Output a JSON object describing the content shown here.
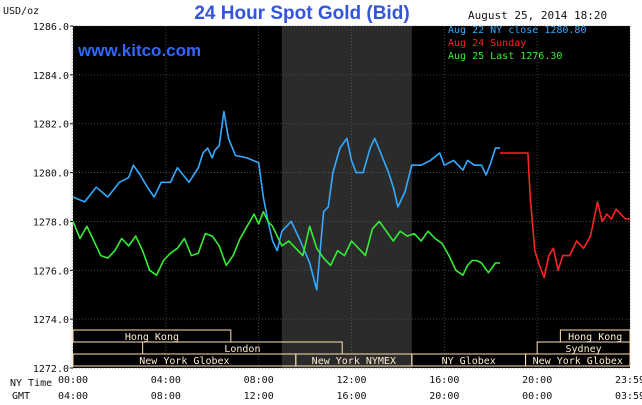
{
  "chart_data": {
    "type": "line",
    "title": "24 Hour Spot Gold (Bid)",
    "website": "www.kitco.com",
    "timestamp": "August 25, 2014 18:20",
    "ylabel": "USD/oz",
    "ylim": [
      1272.0,
      1286.0
    ],
    "y_ticks": [
      "1286.0",
      "1284.0",
      "1282.0",
      "1280.0",
      "1278.0",
      "1276.0",
      "1274.0",
      "1272.0"
    ],
    "x_axis_rows": [
      {
        "label": "NY Time",
        "ticks": [
          "00:00",
          "04:00",
          "08:00",
          "12:00",
          "16:00",
          "20:00",
          "23:59"
        ]
      },
      {
        "label": "GMT",
        "ticks": [
          "04:00",
          "08:00",
          "12:00",
          "16:00",
          "20:00",
          "00:00",
          "03:59"
        ]
      }
    ],
    "legend": [
      {
        "text": "Aug 22 NY close 1280.80",
        "color": "#33aaff"
      },
      {
        "text": "Aug 24 Sunday",
        "color": "#ff2222"
      },
      {
        "text": "Aug 25 Last 1276.30",
        "color": "#33ee33"
      }
    ],
    "sessions": [
      {
        "name": "Hong Kong",
        "row": 0,
        "start": 0.0,
        "end": 6.8
      },
      {
        "name": "Hong Kong",
        "row": 0,
        "start": 21.0,
        "end": 24.0
      },
      {
        "name": "London",
        "row": 1,
        "start": 3.0,
        "end": 11.6
      },
      {
        "name": "Sydney",
        "row": 1,
        "start": 20.0,
        "end": 24.0
      },
      {
        "name": "New York Globex",
        "row": 2,
        "start": 0.0,
        "end": 9.6
      },
      {
        "name": "New York NYMEX",
        "row": 2,
        "start": 9.6,
        "end": 14.6
      },
      {
        "name": "NY Globex",
        "row": 2,
        "start": 14.6,
        "end": 19.5
      },
      {
        "name": "New York Globex",
        "row": 2,
        "start": 19.5,
        "end": 24.0
      }
    ],
    "nymex_shade": [
      9.0,
      14.6
    ],
    "series": [
      {
        "name": "Aug 22 NY close 1280.80",
        "color": "#33aaff",
        "x": [
          0.0,
          0.5,
          1.0,
          1.5,
          2.0,
          2.4,
          2.6,
          2.9,
          3.2,
          3.5,
          3.8,
          4.2,
          4.5,
          5.0,
          5.4,
          5.6,
          5.8,
          6.0,
          6.1,
          6.3,
          6.5,
          6.7,
          7.0,
          7.5,
          8.0,
          8.2,
          8.4,
          8.6,
          8.8,
          9.0,
          9.4,
          9.8,
          10.2,
          10.5,
          10.8,
          11.0,
          11.2,
          11.5,
          11.8,
          12.0,
          12.2,
          12.5,
          12.8,
          13.0,
          13.3,
          13.6,
          13.8,
          14.0,
          14.3,
          14.6,
          15.0,
          15.4,
          15.8,
          16.0,
          16.4,
          16.8,
          17.0,
          17.3,
          17.6,
          17.8,
          18.0,
          18.2,
          18.4
        ],
        "y": [
          1279.0,
          1278.8,
          1279.4,
          1279.0,
          1279.6,
          1279.8,
          1280.3,
          1279.9,
          1279.4,
          1279.0,
          1279.6,
          1279.6,
          1280.2,
          1279.6,
          1280.2,
          1280.8,
          1281.0,
          1280.6,
          1280.9,
          1281.1,
          1282.5,
          1281.4,
          1280.7,
          1280.6,
          1280.4,
          1279.0,
          1278.0,
          1277.2,
          1276.8,
          1277.6,
          1278.0,
          1277.2,
          1276.3,
          1275.2,
          1278.4,
          1278.6,
          1280.0,
          1281.0,
          1281.4,
          1280.5,
          1280.0,
          1280.0,
          1281.0,
          1281.4,
          1280.7,
          1280.0,
          1279.4,
          1278.6,
          1279.2,
          1280.3,
          1280.3,
          1280.5,
          1280.8,
          1280.3,
          1280.5,
          1280.1,
          1280.5,
          1280.3,
          1280.3,
          1279.9,
          1280.4,
          1281.0,
          1281.0
        ]
      },
      {
        "name": "Aug 24 Sunday",
        "color": "#ff2222",
        "x": [
          18.4,
          18.8,
          19.2,
          19.6,
          19.7,
          19.9,
          20.1,
          20.3,
          20.5,
          20.7,
          20.9,
          21.1,
          21.4,
          21.7,
          22.0,
          22.3,
          22.6,
          22.8,
          23.0,
          23.2,
          23.4,
          23.6,
          23.8,
          24.0
        ],
        "y": [
          1280.8,
          1280.8,
          1280.8,
          1280.8,
          1279.0,
          1276.8,
          1276.2,
          1275.7,
          1276.6,
          1276.9,
          1276.0,
          1276.6,
          1276.6,
          1277.2,
          1276.9,
          1277.4,
          1278.8,
          1278.0,
          1278.3,
          1278.1,
          1278.5,
          1278.3,
          1278.1,
          1278.1
        ]
      },
      {
        "name": "Aug 25 Last 1276.30",
        "color": "#33ee33",
        "x": [
          0.0,
          0.3,
          0.6,
          0.9,
          1.2,
          1.5,
          1.8,
          2.1,
          2.4,
          2.7,
          3.0,
          3.3,
          3.6,
          3.9,
          4.2,
          4.5,
          4.8,
          5.1,
          5.4,
          5.7,
          6.0,
          6.3,
          6.6,
          6.9,
          7.2,
          7.5,
          7.8,
          8.0,
          8.2,
          8.4,
          8.6,
          8.8,
          9.0,
          9.3,
          9.6,
          9.9,
          10.2,
          10.5,
          10.8,
          11.1,
          11.4,
          11.7,
          12.0,
          12.3,
          12.6,
          12.9,
          13.2,
          13.5,
          13.8,
          14.1,
          14.4,
          14.7,
          15.0,
          15.3,
          15.6,
          15.9,
          16.2,
          16.5,
          16.8,
          17.0,
          17.2,
          17.4,
          17.6,
          17.9,
          18.2,
          18.4
        ],
        "y": [
          1278.0,
          1277.3,
          1277.8,
          1277.2,
          1276.6,
          1276.5,
          1276.8,
          1277.3,
          1277.0,
          1277.4,
          1276.8,
          1276.0,
          1275.8,
          1276.4,
          1276.7,
          1276.9,
          1277.3,
          1276.6,
          1276.7,
          1277.5,
          1277.4,
          1277.0,
          1276.2,
          1276.6,
          1277.3,
          1277.8,
          1278.3,
          1277.9,
          1278.4,
          1278.0,
          1277.8,
          1277.4,
          1277.0,
          1277.2,
          1276.9,
          1276.6,
          1277.8,
          1276.9,
          1276.5,
          1276.2,
          1276.8,
          1276.6,
          1277.2,
          1276.9,
          1276.6,
          1277.7,
          1278.0,
          1277.6,
          1277.2,
          1277.6,
          1277.4,
          1277.5,
          1277.2,
          1277.6,
          1277.3,
          1277.1,
          1276.6,
          1276.0,
          1275.8,
          1276.2,
          1276.4,
          1276.4,
          1276.3,
          1275.9,
          1276.3,
          1276.3
        ]
      }
    ]
  }
}
